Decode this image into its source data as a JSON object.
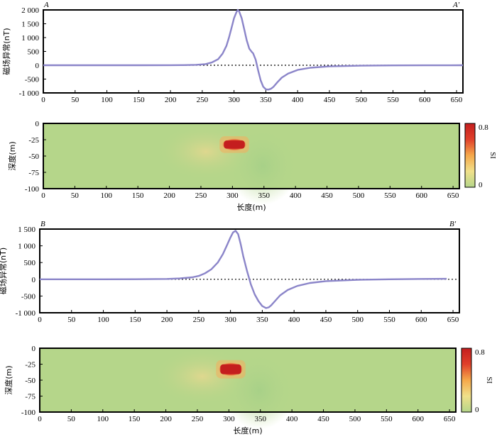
{
  "chart_data": [
    {
      "type": "line",
      "corner_left": "A",
      "corner_right": "A'",
      "ylabel": "磁场异常(nT)",
      "xlim": [
        0,
        660
      ],
      "ylim": [
        -1000,
        2000
      ],
      "xticks": [
        "0",
        "50",
        "100",
        "150",
        "200",
        "250",
        "300",
        "350",
        "400",
        "450",
        "500",
        "550",
        "600",
        "650"
      ],
      "yticks": [
        "2 000",
        "1 500",
        "1 000",
        "500",
        "0",
        "-500",
        "-1 000"
      ],
      "ytick_values": [
        2000,
        1500,
        1000,
        500,
        0,
        -500,
        -1000
      ],
      "series": [
        {
          "color": "#8b85c9",
          "x": [
            0,
            100,
            150,
            200,
            220,
            240,
            255,
            265,
            275,
            282,
            288,
            292,
            296,
            300,
            304,
            306,
            308,
            312,
            316,
            320,
            324,
            328,
            330,
            334,
            338,
            342,
            346,
            350,
            354,
            358,
            362,
            368,
            375,
            385,
            400,
            420,
            450,
            500,
            550,
            600,
            660
          ],
          "y": [
            0,
            0,
            0,
            2,
            5,
            15,
            40,
            100,
            220,
            420,
            700,
            1000,
            1350,
            1700,
            1930,
            2000,
            1950,
            1700,
            1300,
            900,
            600,
            480,
            430,
            200,
            -200,
            -550,
            -780,
            -870,
            -880,
            -850,
            -780,
            -620,
            -450,
            -300,
            -170,
            -90,
            -40,
            -15,
            -5,
            -2,
            0
          ]
        }
      ],
      "baseline": 0
    },
    {
      "type": "heatmap",
      "ylabel": "深度(m)",
      "xlabel": "长度(m)",
      "xlim": [
        0,
        660
      ],
      "ylim": [
        -100,
        0
      ],
      "xticks": [
        "0",
        "50",
        "100",
        "150",
        "200",
        "250",
        "300",
        "350",
        "400",
        "450",
        "500",
        "550",
        "600",
        "650"
      ],
      "yticks": [
        "0",
        "-25",
        "-50",
        "-75",
        "-100"
      ],
      "ytick_values": [
        0,
        -25,
        -50,
        -75,
        -100
      ],
      "background_color": "#b5d68a",
      "anomaly": {
        "x_range": [
          283,
          323
        ],
        "depth_range": [
          -42,
          -23
        ],
        "value": 0.8
      },
      "colorbar": {
        "label": "SI",
        "max_label": "0.8",
        "min_label": "0",
        "colors": [
          "#b5d68a",
          "#f0e08a",
          "#f5a84a",
          "#e0402a",
          "#c41e1e"
        ]
      }
    },
    {
      "type": "line",
      "corner_left": "B",
      "corner_right": "B'",
      "ylabel": "磁场异常(nT)",
      "xlim": [
        0,
        660
      ],
      "ylim": [
        -1000,
        1500
      ],
      "xticks": [
        "0",
        "50",
        "100",
        "150",
        "200",
        "250",
        "300",
        "350",
        "400",
        "450",
        "500",
        "550",
        "600",
        "650"
      ],
      "yticks": [
        "1 500",
        "1 000",
        "500",
        "0",
        "-500",
        "-1 000"
      ],
      "ytick_values": [
        1500,
        1000,
        500,
        0,
        -500,
        -1000
      ],
      "series": [
        {
          "color": "#8b85c9",
          "x": [
            0,
            100,
            150,
            200,
            220,
            240,
            250,
            260,
            270,
            280,
            288,
            294,
            300,
            304,
            308,
            312,
            316,
            320,
            326,
            332,
            338,
            344,
            350,
            356,
            360,
            364,
            370,
            378,
            390,
            405,
            425,
            450,
            500,
            550,
            600,
            640
          ],
          "y": [
            0,
            0,
            2,
            10,
            25,
            60,
            100,
            180,
            300,
            500,
            750,
            1000,
            1250,
            1400,
            1450,
            1350,
            1050,
            700,
            250,
            -150,
            -450,
            -650,
            -800,
            -860,
            -840,
            -780,
            -650,
            -480,
            -320,
            -200,
            -110,
            -55,
            -15,
            0,
            10,
            15
          ]
        }
      ],
      "baseline": 0
    },
    {
      "type": "heatmap",
      "ylabel": "深度(m)",
      "xlabel": "长度(m)",
      "xlim": [
        0,
        660
      ],
      "ylim": [
        -100,
        0
      ],
      "xticks": [
        "0",
        "50",
        "100",
        "150",
        "200",
        "250",
        "300",
        "350",
        "400",
        "450",
        "500",
        "550",
        "600",
        "650"
      ],
      "yticks": [
        "0",
        "-25",
        "-50",
        "-75",
        "-100"
      ],
      "ytick_values": [
        0,
        -25,
        -50,
        -75,
        -100
      ],
      "background_color": "#b5d68a",
      "anomaly": {
        "x_range": [
          283,
          323
        ],
        "depth_range": [
          -44,
          -22
        ],
        "value": 0.8
      },
      "colorbar": {
        "label": "SI",
        "max_label": "0.8",
        "min_label": "0",
        "colors": [
          "#b5d68a",
          "#f0e08a",
          "#f5a84a",
          "#e0402a",
          "#c41e1e"
        ]
      }
    }
  ]
}
